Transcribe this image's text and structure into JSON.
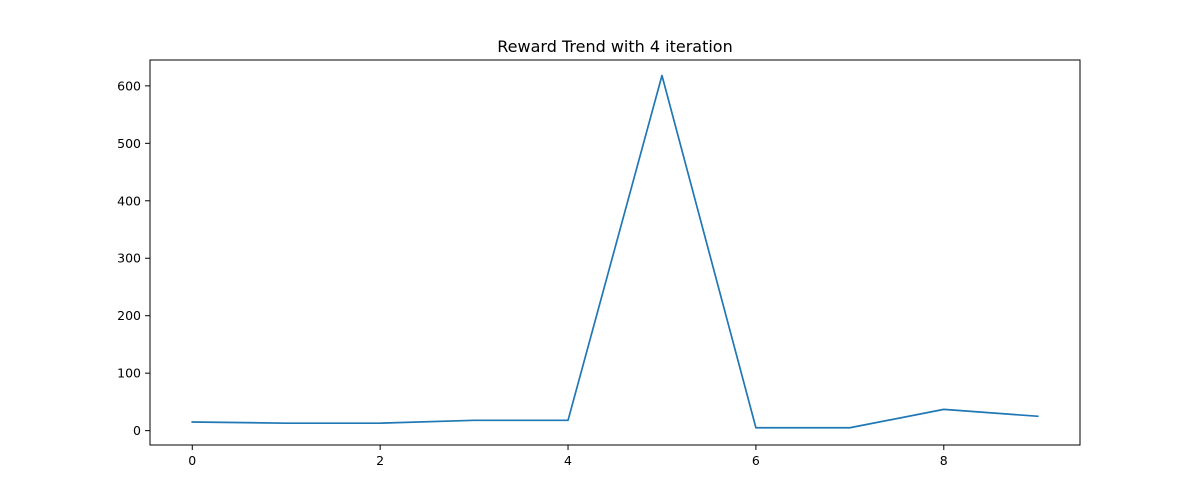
{
  "chart_data": {
    "type": "line",
    "title": "Reward Trend with 4 iteration",
    "xlabel": "",
    "ylabel": "",
    "xlim": [
      -0.45,
      9.45
    ],
    "ylim": [
      -25,
      645
    ],
    "x_ticks": [
      0,
      2,
      4,
      6,
      8
    ],
    "y_ticks": [
      0,
      100,
      200,
      300,
      400,
      500,
      600
    ],
    "grid": false,
    "legend": "none",
    "line_color": "#1f77b4",
    "series": [
      {
        "x": [
          0,
          1,
          2,
          3,
          4,
          5,
          6,
          7,
          8,
          9
        ],
        "values": [
          15,
          13,
          13,
          18,
          18,
          618,
          5,
          5,
          37,
          25
        ]
      }
    ]
  }
}
